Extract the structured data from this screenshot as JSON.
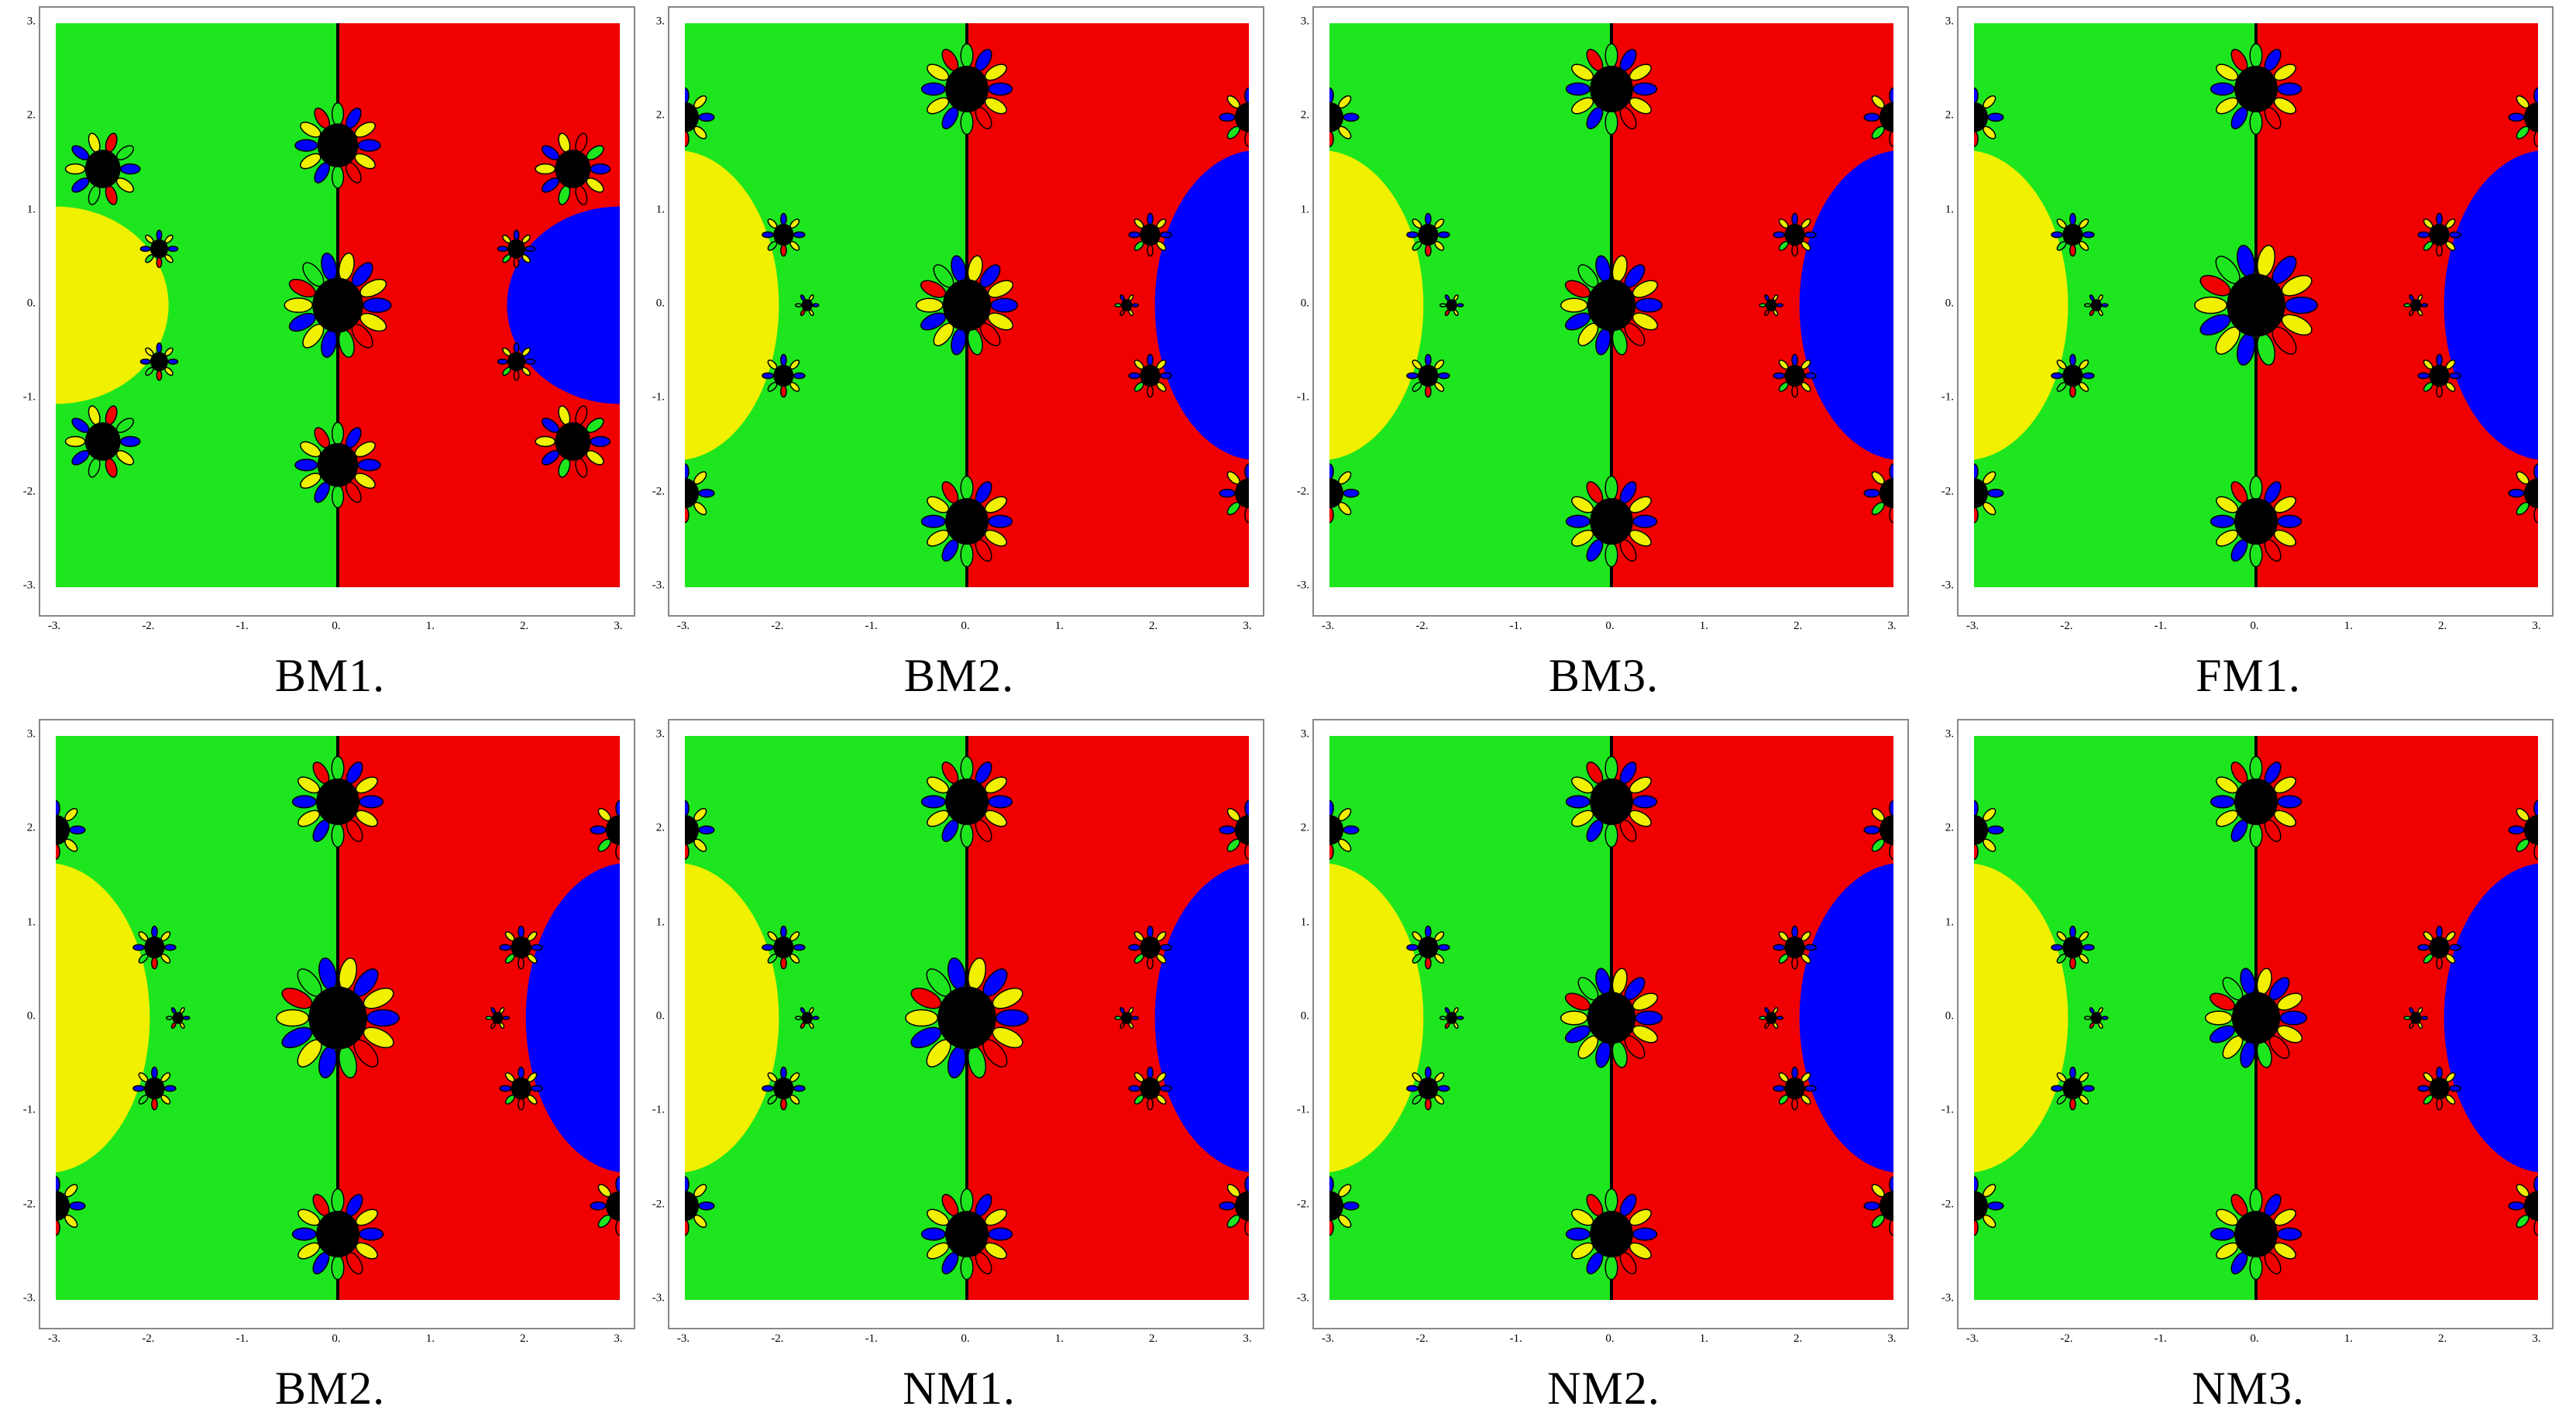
{
  "figure": {
    "panels": [
      {
        "label": "BM1.",
        "variant": "a"
      },
      {
        "label": "BM2.",
        "variant": "b"
      },
      {
        "label": "BM3.",
        "variant": "b"
      },
      {
        "label": "FM1.",
        "variant": "c"
      },
      {
        "label": "BM2.",
        "variant": "c"
      },
      {
        "label": "NM1.",
        "variant": "c"
      },
      {
        "label": "NM2.",
        "variant": "b"
      },
      {
        "label": "NM3.",
        "variant": "b"
      }
    ],
    "x_ticks": [
      "-3.",
      "-2.",
      "-1.",
      "0.",
      "1.",
      "2.",
      "3."
    ],
    "y_ticks": [
      "3.",
      "2.",
      "1.",
      "0.",
      "-1.",
      "-2.",
      "-3."
    ],
    "colors": {
      "green": "#1ee61e",
      "red": "#f00000",
      "blue": "#0000ff",
      "yellow": "#f0f000",
      "black": "#000000"
    }
  }
}
